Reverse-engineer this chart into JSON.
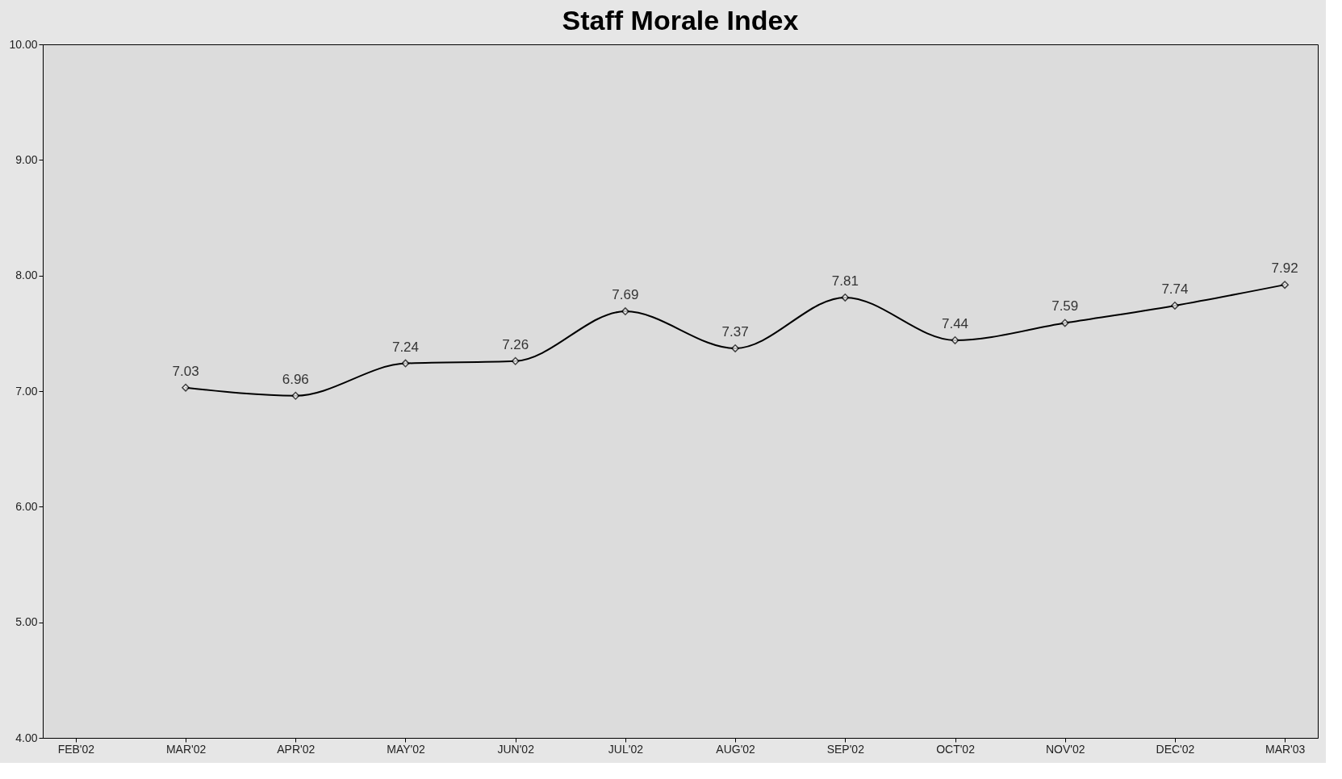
{
  "chart_data": {
    "type": "line",
    "title": "Staff Morale Index",
    "categories": [
      "FEB'02",
      "MAR'02",
      "APR'02",
      "MAY'02",
      "JUN'02",
      "JUL'02",
      "AUG'02",
      "SEP'02",
      "OCT'02",
      "NOV'02",
      "DEC'02",
      "MAR'03"
    ],
    "series": [
      {
        "color": "#000000",
        "values": [
          null,
          7.03,
          6.96,
          7.24,
          7.26,
          7.69,
          7.37,
          7.81,
          7.44,
          7.59,
          7.74,
          7.92
        ]
      }
    ],
    "ylim": [
      4,
      10
    ],
    "yticks": [
      {
        "value": 4,
        "label": "4.00"
      },
      {
        "value": 5,
        "label": "5.00"
      },
      {
        "value": 6,
        "label": "6.00"
      },
      {
        "value": 7,
        "label": "7.00"
      },
      {
        "value": 8,
        "label": "8.00"
      },
      {
        "value": 9,
        "label": "9.00"
      },
      {
        "value": 10,
        "label": "10.00"
      }
    ],
    "grid": false,
    "marker": "diamond",
    "line_style": "solid",
    "data_labels": true
  }
}
